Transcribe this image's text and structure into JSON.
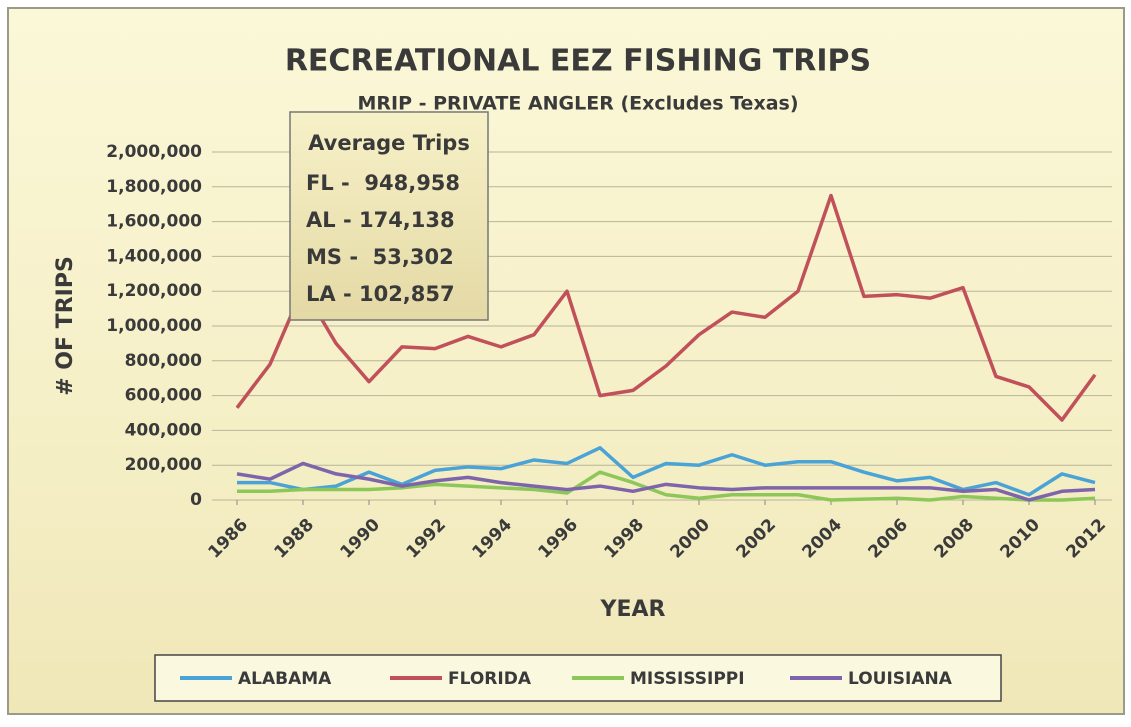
{
  "chart_data": {
    "type": "line",
    "title": "RECREATIONAL EEZ FISHING TRIPS",
    "subtitle": "MRIP - PRIVATE ANGLER (Excludes Texas)",
    "x_label": "YEAR",
    "y_label": "# OF TRIPS",
    "annotation": {
      "title": "Average Trips",
      "lines": [
        "FL -  948,958",
        "AL - 174,138",
        "MS -  53,302",
        "LA - 102,857"
      ]
    },
    "x": [
      1986,
      1987,
      1988,
      1989,
      1990,
      1991,
      1992,
      1993,
      1994,
      1995,
      1996,
      1997,
      1998,
      1999,
      2000,
      2001,
      2002,
      2003,
      2004,
      2005,
      2006,
      2007,
      2008,
      2009,
      2010,
      2011,
      2012
    ],
    "xlim": [
      1986,
      2012
    ],
    "xticks": [
      1986,
      1988,
      1990,
      1992,
      1994,
      1996,
      1998,
      2000,
      2002,
      2004,
      2006,
      2008,
      2010,
      2012
    ],
    "ylim": [
      0,
      2000000
    ],
    "yticks": [
      0,
      {
        "value": 200000,
        "label": "200,000"
      },
      {
        "value": 400000,
        "label": "400,000"
      },
      {
        "value": 600000,
        "label": "600,000"
      },
      {
        "value": 800000,
        "label": "800,000"
      },
      {
        "value": 1000000,
        "label": "1,000,000"
      },
      {
        "value": 1200000,
        "label": "1,200,000"
      },
      {
        "value": 1400000,
        "label": "1,400,000"
      },
      {
        "value": 1600000,
        "label": "1,600,000"
      },
      {
        "value": 1800000,
        "label": "1,800,000"
      },
      {
        "value": 2000000,
        "label": "2,000,000"
      }
    ],
    "grid": true,
    "legend": "bottom",
    "series": [
      {
        "name": "ALABAMA",
        "color": "#4aa3d6",
        "values": [
          100000,
          100000,
          60000,
          80000,
          160000,
          90000,
          170000,
          190000,
          180000,
          230000,
          210000,
          300000,
          130000,
          210000,
          200000,
          260000,
          200000,
          220000,
          220000,
          160000,
          110000,
          130000,
          60000,
          100000,
          30000,
          150000,
          100000
        ]
      },
      {
        "name": "FLORIDA",
        "color": "#c0505a",
        "values": [
          530000,
          780000,
          1220000,
          900000,
          680000,
          880000,
          870000,
          940000,
          880000,
          950000,
          1200000,
          600000,
          630000,
          770000,
          950000,
          1080000,
          1050000,
          1200000,
          1750000,
          1170000,
          1180000,
          1160000,
          1220000,
          710000,
          650000,
          460000,
          720000
        ]
      },
      {
        "name": "MISSISSIPPI",
        "color": "#8dc75a",
        "values": [
          50000,
          50000,
          60000,
          60000,
          60000,
          70000,
          90000,
          80000,
          70000,
          60000,
          40000,
          160000,
          100000,
          30000,
          10000,
          30000,
          30000,
          30000,
          0,
          5000,
          10000,
          0,
          20000,
          10000,
          0,
          0,
          10000
        ]
      },
      {
        "name": "LOUISIANA",
        "color": "#7e65ab",
        "values": [
          150000,
          120000,
          210000,
          150000,
          120000,
          80000,
          110000,
          130000,
          100000,
          80000,
          60000,
          80000,
          50000,
          90000,
          70000,
          60000,
          70000,
          70000,
          70000,
          70000,
          70000,
          70000,
          50000,
          60000,
          0,
          50000,
          60000
        ]
      }
    ]
  }
}
